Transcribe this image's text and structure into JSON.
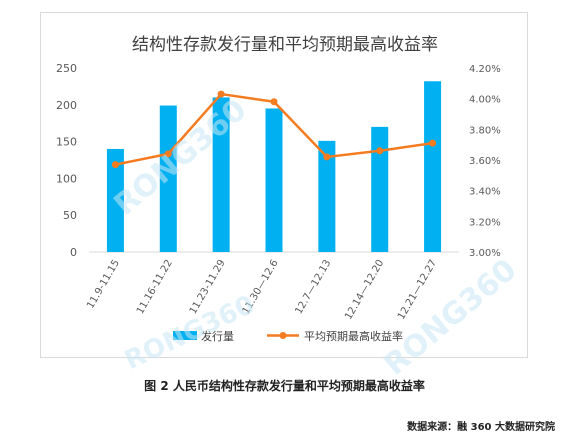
{
  "chart_data": {
    "type": "bar+line",
    "title": "结构性存款发行量和平均预期最高收益率",
    "categories": [
      "11.9-11.15",
      "11.16-11.22",
      "11.23-11.29",
      "11.30—12.6",
      "12.7—12.13",
      "12.14—12.20",
      "12.21—12.27"
    ],
    "series": [
      {
        "name": "发行量",
        "type": "bar",
        "axis": "left",
        "color": "#00b0f0",
        "values": [
          140,
          199,
          210,
          195,
          151,
          170,
          232
        ]
      },
      {
        "name": "平均预期最高收益率",
        "type": "line",
        "axis": "right",
        "color": "#f47b20",
        "values": [
          3.57,
          3.64,
          4.03,
          3.98,
          3.62,
          3.66,
          3.71
        ]
      }
    ],
    "y_left": {
      "min": 0,
      "max": 250,
      "step": 50,
      "ticks": [
        "0",
        "50",
        "100",
        "150",
        "200",
        "250"
      ]
    },
    "y_right": {
      "min": 3.0,
      "max": 4.2,
      "step": 0.2,
      "ticks": [
        "3.00%",
        "3.20%",
        "3.40%",
        "3.60%",
        "3.80%",
        "4.00%",
        "4.20%"
      ]
    },
    "grid": false,
    "legend_position": "bottom"
  },
  "watermark_text": "RONG360",
  "caption": "图 2 人民币结构性存款发行量和平均预期最高收益率",
  "source": "数据来源：融 360 大数据研究院"
}
